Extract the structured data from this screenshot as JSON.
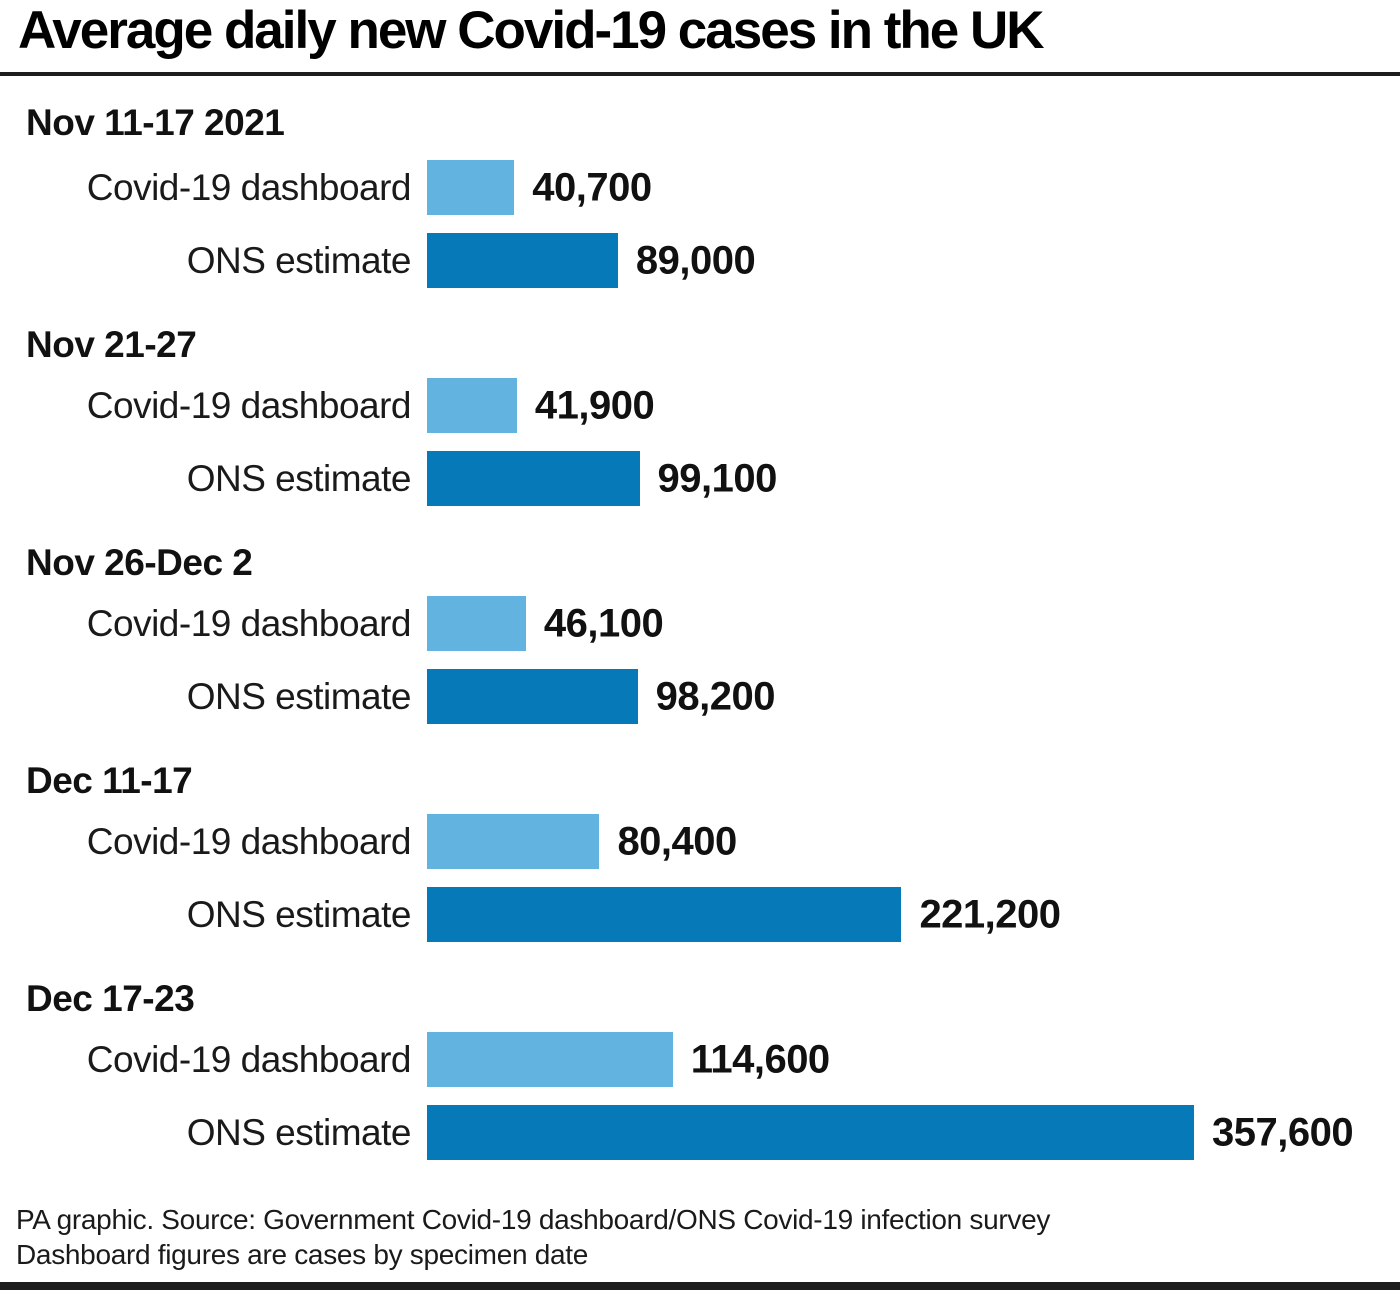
{
  "header": {
    "title": "Average daily new Covid-19 cases in the UK"
  },
  "colors": {
    "dashboard_bar": "#63b3e0",
    "ons_bar": "#0679b8",
    "rule": "#1d1d1b",
    "text": "#1a1a1a"
  },
  "chart_data": {
    "type": "bar",
    "orientation": "horizontal",
    "title": "Average daily new Covid-19 cases in the UK",
    "grid": false,
    "legend_position": "inline-row-labels",
    "value_axis_max": 357600,
    "categories": [
      "Nov 11-17 2021",
      "Nov 21-27",
      "Nov 26-Dec 2",
      "Dec 11-17",
      "Dec 17-23"
    ],
    "series": [
      {
        "name": "Covid-19 dashboard",
        "color": "#63b3e0",
        "values": [
          40700,
          41900,
          46100,
          80400,
          114600
        ],
        "display_values": [
          "40,700",
          "41,900",
          "46,100",
          "80,400",
          "114,600"
        ]
      },
      {
        "name": "ONS estimate",
        "color": "#0679b8",
        "values": [
          89000,
          99100,
          98200,
          221200,
          357600
        ],
        "display_values": [
          "89,000",
          "99,100",
          "98,200",
          "221,200",
          "357,600"
        ]
      }
    ]
  },
  "footer": {
    "line1": "PA graphic. Source: Government Covid-19 dashboard/ONS Covid-19 infection survey",
    "line2": "Dashboard figures are cases by specimen date"
  }
}
